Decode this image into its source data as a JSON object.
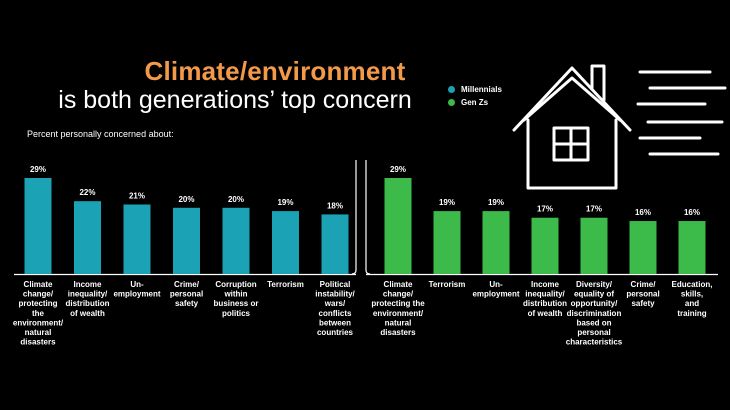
{
  "header": {
    "title_line1": "Climate/environment",
    "title_line2": "is both generations’ top concern",
    "subtitle": "Percent personally concerned about:"
  },
  "legend": [
    {
      "label": "Millennials",
      "color": "#1ba2b5"
    },
    {
      "label": "Gen Zs",
      "color": "#3dbb4a"
    }
  ],
  "decor": {
    "icon": "house-with-wind-icon"
  },
  "chart_data": [
    {
      "type": "bar",
      "series": [
        {
          "name": "Millennials",
          "color": "#1ba2b5",
          "values": [
            29,
            22,
            21,
            20,
            20,
            19,
            18
          ]
        }
      ],
      "categories": [
        "Climate change/ protecting the environment/ natural disasters",
        "Income inequality/ distribution of wealth",
        "Un-employment",
        "Crime/ personal safety",
        "Corruption within business or politics",
        "Terrorism",
        "Political instability/ wars/ conflicts between countries"
      ],
      "category_lines": [
        [
          "Climate",
          "change/",
          "protecting",
          "the",
          "environment/",
          "natural",
          "disasters"
        ],
        [
          "Income",
          "inequality/",
          "distribution",
          "of wealth"
        ],
        [
          "Un-",
          "employment"
        ],
        [
          "Crime/",
          "personal",
          "safety"
        ],
        [
          "Corruption",
          "within",
          "business or",
          "politics"
        ],
        [
          "Terrorism"
        ],
        [
          "Political",
          "instability/",
          "wars/",
          "conflicts",
          "between",
          "countries"
        ]
      ],
      "value_labels": [
        "29%",
        "22%",
        "21%",
        "20%",
        "20%",
        "19%",
        "18%"
      ],
      "ylim": [
        0,
        29
      ]
    },
    {
      "type": "bar",
      "series": [
        {
          "name": "Gen Zs",
          "color": "#3dbb4a",
          "values": [
            29,
            19,
            19,
            17,
            17,
            16,
            16
          ]
        }
      ],
      "categories": [
        "Climate change/ protecting the environment/ natural disasters",
        "Terrorism",
        "Un-employment",
        "Income inequality/ distribution of wealth",
        "Diversity/ equality of opportunity/ discrimination based on personal characteristics",
        "Crime/ personal safety",
        "Education, skills, and training"
      ],
      "category_lines": [
        [
          "Climate",
          "change/",
          "protecting the",
          "environment/",
          "natural",
          "disasters"
        ],
        [
          "Terrorism"
        ],
        [
          "Un-",
          "employment"
        ],
        [
          "Income",
          "inequality/",
          "distribution",
          "of wealth"
        ],
        [
          "Diversity/",
          "equality of",
          "opportunity/",
          "discrimination",
          "based on",
          "personal",
          "characteristics"
        ],
        [
          "Crime/",
          "personal",
          "safety"
        ],
        [
          "Education,",
          "skills,",
          "and",
          "training"
        ]
      ],
      "value_labels": [
        "29%",
        "19%",
        "19%",
        "17%",
        "17%",
        "16%",
        "16%"
      ],
      "ylim": [
        0,
        29
      ]
    }
  ]
}
